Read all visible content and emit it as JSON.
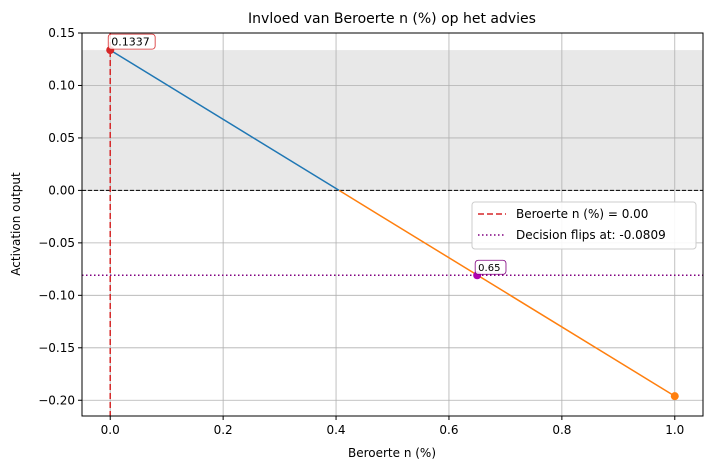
{
  "chart_data": {
    "type": "line",
    "title": "Invloed van Beroerte n (%) op het advies",
    "xlabel": "Beroerte n (%)",
    "ylabel": "Activation output",
    "xlim": [
      -0.05,
      1.05
    ],
    "ylim": [
      -0.215,
      0.15
    ],
    "xticks": [
      0.0,
      0.2,
      0.4,
      0.6,
      0.8,
      1.0
    ],
    "xtick_labels": [
      "0.0",
      "0.2",
      "0.4",
      "0.6",
      "0.8",
      "1.0"
    ],
    "yticks": [
      0.15,
      0.1,
      0.05,
      0.0,
      -0.05,
      -0.1,
      -0.15,
      -0.2
    ],
    "ytick_labels": [
      "0.15",
      "0.10",
      "0.05",
      "0.00",
      "−0.05",
      "−0.10",
      "−0.15",
      "−0.20"
    ],
    "grid": true,
    "legend_position": "center-right",
    "series": [
      {
        "color": "#1f77b4",
        "x": [
          0.0,
          0.4054
        ],
        "y": [
          0.1337,
          0.0
        ]
      },
      {
        "color": "#ff7f0e",
        "x": [
          0.4054,
          1.0
        ],
        "y": [
          0.0,
          -0.1961
        ]
      }
    ],
    "shaded_region": {
      "y0": 0.0,
      "y1": 0.1337,
      "color": "#e8e8e8"
    },
    "zero_line": {
      "y": 0.0,
      "color": "#000000"
    },
    "vline": {
      "x": 0.0,
      "color": "#d62728",
      "legend": "Beroerte n (%) = 0.00"
    },
    "hline": {
      "y": -0.0809,
      "color": "#800080",
      "legend": "Decision flips at: -0.0809"
    },
    "points": [
      {
        "x": 0.0,
        "y": 0.1337,
        "color": "#d62728",
        "label": "0.1337",
        "label_color": "#d62728"
      },
      {
        "x": 0.65,
        "y": -0.0809,
        "color": "#b000b0",
        "label": "0.65",
        "label_color": "#800080"
      },
      {
        "x": 1.0,
        "y": -0.1961,
        "color": "#ff7f0e",
        "label": ""
      }
    ]
  }
}
